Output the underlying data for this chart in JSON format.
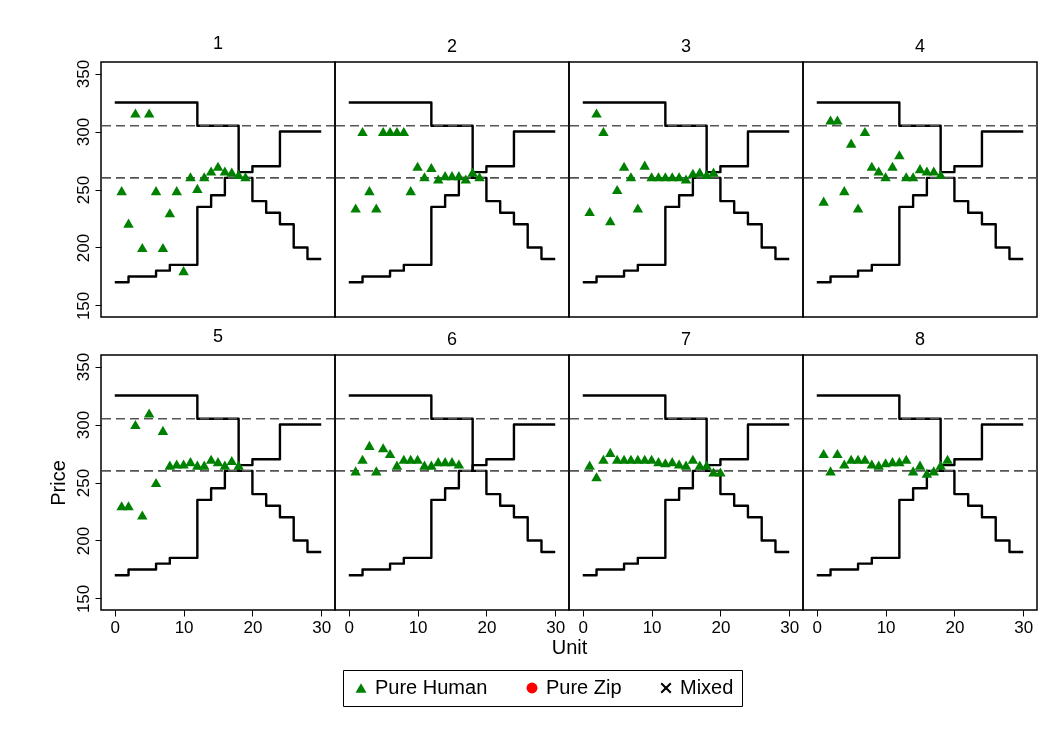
{
  "chart_data": [
    {
      "type": "scatter",
      "title": "1",
      "xlim": [
        -2,
        32
      ],
      "ylim": [
        140,
        360
      ],
      "yticks": [
        150,
        200,
        250,
        300,
        350
      ],
      "tick_labels": "y",
      "legend": "bottom",
      "ref_lines": [
        {
          "axis": "y",
          "value": 305,
          "color": "#555555",
          "line_style": "dashed"
        },
        {
          "axis": "y",
          "value": 260,
          "color": "#555555",
          "line_style": "dashed"
        }
      ],
      "series": [
        {
          "type": "step",
          "color": "#000000",
          "x": [
            0,
            12,
            18,
            20,
            22,
            24,
            26,
            28,
            30
          ],
          "values": [
            325,
            305,
            260,
            240,
            230,
            220,
            200,
            190,
            190
          ]
        },
        {
          "type": "step",
          "color": "#000000",
          "x": [
            0,
            2,
            6,
            8,
            12,
            14,
            16,
            18,
            20,
            24,
            30
          ],
          "values": [
            170,
            175,
            180,
            185,
            235,
            245,
            260,
            265,
            270,
            300,
            300
          ]
        },
        {
          "name": "Pure Human",
          "type": "scatter",
          "marker": "triangle",
          "color": "#008000",
          "x": [
            1,
            2,
            3,
            4,
            5,
            6,
            7,
            8,
            9,
            10,
            11,
            12,
            13,
            14,
            15,
            16,
            17,
            18,
            19
          ],
          "values": [
            249,
            221,
            316,
            200,
            316,
            249,
            200,
            230,
            249,
            180,
            261,
            251,
            261,
            266,
            270,
            266,
            265,
            263,
            261
          ]
        },
        {
          "name": "Pure Zip",
          "type": "scatter",
          "marker": "circle",
          "color": "#ff0000"
        },
        {
          "name": "Mixed",
          "type": "scatter",
          "marker": "cross",
          "color": "#000000"
        }
      ]
    },
    {
      "type": "scatter",
      "title": "2",
      "xlim": [
        -2,
        32
      ],
      "ylim": [
        140,
        360
      ],
      "tick_labels": false,
      "ref_lines": [
        {
          "axis": "y",
          "value": 305,
          "color": "#555555",
          "line_style": "dashed"
        },
        {
          "axis": "y",
          "value": 260,
          "color": "#555555",
          "line_style": "dashed"
        }
      ],
      "series": [
        {
          "type": "step",
          "color": "#000000",
          "x": [
            0,
            12,
            18,
            20,
            22,
            24,
            26,
            28,
            30
          ],
          "values": [
            325,
            305,
            260,
            240,
            230,
            220,
            200,
            190,
            190
          ]
        },
        {
          "type": "step",
          "color": "#000000",
          "x": [
            0,
            2,
            6,
            8,
            12,
            14,
            16,
            18,
            20,
            24,
            30
          ],
          "values": [
            170,
            175,
            180,
            185,
            235,
            245,
            260,
            265,
            270,
            300,
            300
          ]
        },
        {
          "type": "scatter",
          "marker": "triangle",
          "color": "#008000",
          "x": [
            1,
            2,
            3,
            4,
            5,
            6,
            7,
            8,
            9,
            10,
            11,
            12,
            13,
            14,
            15,
            16,
            17,
            18,
            19
          ],
          "values": [
            234,
            300,
            249,
            234,
            300,
            300,
            300,
            300,
            249,
            270,
            261,
            269,
            259,
            262,
            262,
            262,
            259,
            265,
            261
          ]
        }
      ]
    },
    {
      "type": "scatter",
      "title": "3",
      "xlim": [
        -2,
        32
      ],
      "ylim": [
        140,
        360
      ],
      "tick_labels": false,
      "ref_lines": [
        {
          "axis": "y",
          "value": 305,
          "color": "#555555",
          "line_style": "dashed"
        },
        {
          "axis": "y",
          "value": 260,
          "color": "#555555",
          "line_style": "dashed"
        }
      ],
      "series": [
        {
          "type": "step",
          "color": "#000000",
          "x": [
            0,
            12,
            18,
            20,
            22,
            24,
            26,
            28,
            30
          ],
          "values": [
            325,
            305,
            260,
            240,
            230,
            220,
            200,
            190,
            190
          ]
        },
        {
          "type": "step",
          "color": "#000000",
          "x": [
            0,
            2,
            6,
            8,
            12,
            14,
            16,
            18,
            20,
            24,
            30
          ],
          "values": [
            170,
            175,
            180,
            185,
            235,
            245,
            260,
            265,
            270,
            300,
            300
          ]
        },
        {
          "type": "scatter",
          "marker": "triangle",
          "color": "#008000",
          "x": [
            1,
            2,
            3,
            4,
            5,
            6,
            7,
            8,
            9,
            10,
            11,
            12,
            13,
            14,
            15,
            16,
            17,
            18,
            19
          ],
          "values": [
            231,
            316,
            300,
            223,
            250,
            270,
            261,
            234,
            271,
            261,
            261,
            261,
            261,
            261,
            259,
            264,
            265,
            263,
            265
          ]
        }
      ]
    },
    {
      "type": "scatter",
      "title": "4",
      "xlim": [
        -2,
        32
      ],
      "ylim": [
        140,
        360
      ],
      "tick_labels": false,
      "ref_lines": [
        {
          "axis": "y",
          "value": 305,
          "color": "#555555",
          "line_style": "dashed"
        },
        {
          "axis": "y",
          "value": 260,
          "color": "#555555",
          "line_style": "dashed"
        }
      ],
      "series": [
        {
          "type": "step",
          "color": "#000000",
          "x": [
            0,
            12,
            18,
            20,
            22,
            24,
            26,
            28,
            30
          ],
          "values": [
            325,
            305,
            260,
            240,
            230,
            220,
            200,
            190,
            190
          ]
        },
        {
          "type": "step",
          "color": "#000000",
          "x": [
            0,
            2,
            6,
            8,
            12,
            14,
            16,
            18,
            20,
            24,
            30
          ],
          "values": [
            170,
            175,
            180,
            185,
            235,
            245,
            260,
            265,
            270,
            300,
            300
          ]
        },
        {
          "type": "scatter",
          "marker": "triangle",
          "color": "#008000",
          "x": [
            1,
            2,
            3,
            4,
            5,
            6,
            7,
            8,
            9,
            10,
            11,
            12,
            13,
            14,
            15,
            16,
            17,
            18
          ],
          "values": [
            240,
            310,
            310,
            249,
            290,
            234,
            300,
            270,
            266,
            261,
            270,
            280,
            261,
            261,
            268,
            266,
            266,
            263
          ]
        }
      ]
    },
    {
      "type": "scatter",
      "title": "5",
      "ylabel": "Price",
      "xlim": [
        -2,
        32
      ],
      "xticks": [
        0,
        10,
        20,
        30
      ],
      "ylim": [
        140,
        360
      ],
      "yticks": [
        150,
        200,
        250,
        300,
        350
      ],
      "ref_lines": [
        {
          "axis": "y",
          "value": 305,
          "color": "#555555",
          "line_style": "dashed"
        },
        {
          "axis": "y",
          "value": 260,
          "color": "#555555",
          "line_style": "dashed"
        }
      ],
      "series": [
        {
          "type": "step",
          "color": "#000000",
          "x": [
            0,
            12,
            18,
            20,
            22,
            24,
            26,
            28,
            30
          ],
          "values": [
            325,
            305,
            260,
            240,
            230,
            220,
            200,
            190,
            190
          ]
        },
        {
          "type": "step",
          "color": "#000000",
          "x": [
            0,
            2,
            6,
            8,
            12,
            14,
            16,
            18,
            20,
            24,
            30
          ],
          "values": [
            170,
            175,
            180,
            185,
            235,
            245,
            260,
            265,
            270,
            300,
            300
          ]
        },
        {
          "type": "scatter",
          "marker": "triangle",
          "color": "#008000",
          "x": [
            1,
            2,
            3,
            4,
            5,
            6,
            7,
            8,
            9,
            10,
            11,
            12,
            13,
            14,
            15,
            16,
            17,
            18
          ],
          "values": [
            230,
            230,
            300,
            222,
            310,
            250,
            295,
            265,
            266,
            266,
            268,
            265,
            265,
            270,
            268,
            265,
            269,
            265
          ]
        }
      ]
    },
    {
      "type": "scatter",
      "title": "6",
      "xlabel": "Unit",
      "xlim": [
        -2,
        32
      ],
      "xticks": [
        0,
        10,
        20,
        30
      ],
      "ylim": [
        140,
        360
      ],
      "tick_labels": "x",
      "ref_lines": [
        {
          "axis": "y",
          "value": 305,
          "color": "#555555",
          "line_style": "dashed"
        },
        {
          "axis": "y",
          "value": 260,
          "color": "#555555",
          "line_style": "dashed"
        }
      ],
      "series": [
        {
          "type": "step",
          "color": "#000000",
          "x": [
            0,
            12,
            18,
            20,
            22,
            24,
            26,
            28,
            30
          ],
          "values": [
            325,
            305,
            260,
            240,
            230,
            220,
            200,
            190,
            190
          ]
        },
        {
          "type": "step",
          "color": "#000000",
          "x": [
            0,
            2,
            6,
            8,
            12,
            14,
            16,
            18,
            20,
            24,
            30
          ],
          "values": [
            170,
            175,
            180,
            185,
            235,
            245,
            260,
            265,
            270,
            300,
            300
          ]
        },
        {
          "type": "scatter",
          "marker": "triangle",
          "color": "#008000",
          "x": [
            1,
            2,
            3,
            4,
            5,
            6,
            7,
            8,
            9,
            10,
            11,
            12,
            13,
            14,
            15,
            16
          ],
          "values": [
            260,
            270,
            282,
            260,
            280,
            275,
            265,
            270,
            270,
            270,
            265,
            265,
            268,
            268,
            268,
            266
          ]
        }
      ]
    },
    {
      "type": "scatter",
      "title": "7",
      "xlim": [
        -2,
        32
      ],
      "xticks": [
        0,
        10,
        20,
        30
      ],
      "ylim": [
        140,
        360
      ],
      "tick_labels": "x",
      "ref_lines": [
        {
          "axis": "y",
          "value": 305,
          "color": "#555555",
          "line_style": "dashed"
        },
        {
          "axis": "y",
          "value": 260,
          "color": "#555555",
          "line_style": "dashed"
        }
      ],
      "series": [
        {
          "type": "step",
          "color": "#000000",
          "x": [
            0,
            12,
            18,
            20,
            22,
            24,
            26,
            28,
            30
          ],
          "values": [
            325,
            305,
            260,
            240,
            230,
            220,
            200,
            190,
            190
          ]
        },
        {
          "type": "step",
          "color": "#000000",
          "x": [
            0,
            2,
            6,
            8,
            12,
            14,
            16,
            18,
            20,
            24,
            30
          ],
          "values": [
            170,
            175,
            180,
            185,
            235,
            245,
            260,
            265,
            270,
            300,
            300
          ]
        },
        {
          "type": "scatter",
          "marker": "triangle",
          "color": "#008000",
          "x": [
            1,
            2,
            3,
            4,
            5,
            6,
            7,
            8,
            9,
            10,
            11,
            12,
            13,
            14,
            15,
            16,
            17,
            18,
            19,
            20
          ],
          "values": [
            265,
            255,
            270,
            276,
            270,
            270,
            270,
            270,
            270,
            270,
            268,
            267,
            268,
            266,
            265,
            270,
            265,
            265,
            259,
            259
          ]
        }
      ]
    },
    {
      "type": "scatter",
      "title": "8",
      "xlim": [
        -2,
        32
      ],
      "xticks": [
        0,
        10,
        20,
        30
      ],
      "ylim": [
        140,
        360
      ],
      "tick_labels": "x",
      "ref_lines": [
        {
          "axis": "y",
          "value": 305,
          "color": "#555555",
          "line_style": "dashed"
        },
        {
          "axis": "y",
          "value": 260,
          "color": "#555555",
          "line_style": "dashed"
        }
      ],
      "series": [
        {
          "type": "step",
          "color": "#000000",
          "x": [
            0,
            12,
            18,
            20,
            22,
            24,
            26,
            28,
            30
          ],
          "values": [
            325,
            305,
            260,
            240,
            230,
            220,
            200,
            190,
            190
          ]
        },
        {
          "type": "step",
          "color": "#000000",
          "x": [
            0,
            2,
            6,
            8,
            12,
            14,
            16,
            18,
            20,
            24,
            30
          ],
          "values": [
            170,
            175,
            180,
            185,
            235,
            245,
            260,
            265,
            270,
            300,
            300
          ]
        },
        {
          "type": "scatter",
          "marker": "triangle",
          "color": "#008000",
          "x": [
            1,
            2,
            3,
            4,
            5,
            6,
            7,
            8,
            9,
            10,
            11,
            12,
            13,
            14,
            15,
            16,
            17,
            18,
            19
          ],
          "values": [
            275,
            260,
            275,
            266,
            270,
            270,
            270,
            266,
            265,
            267,
            268,
            268,
            270,
            260,
            265,
            258,
            260,
            265,
            270
          ]
        }
      ]
    }
  ]
}
